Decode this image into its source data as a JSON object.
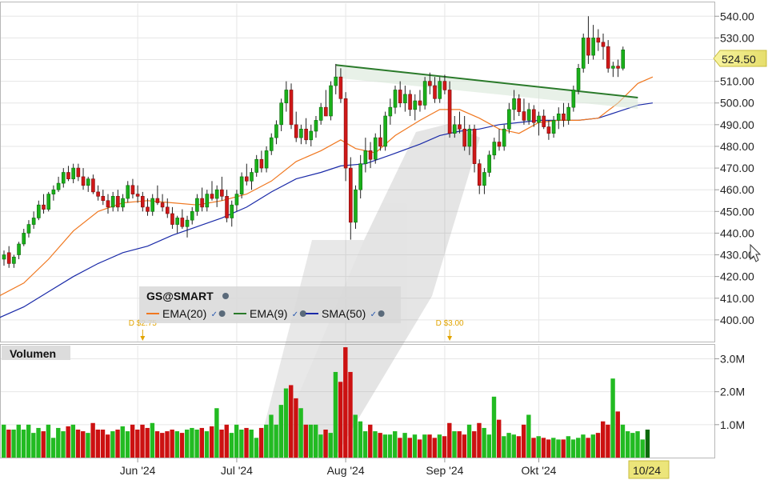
{
  "chart_data": {
    "type": "candlestick",
    "symbol_label": "GS@SMART",
    "price_axis": {
      "ticks": [
        "540.00",
        "530.00",
        "520.00",
        "510.00",
        "500.00",
        "490.00",
        "480.00",
        "470.00",
        "460.00",
        "450.00",
        "440.00",
        "430.00",
        "420.00",
        "410.00",
        "400.00"
      ],
      "tick_values": [
        540,
        530,
        520,
        510,
        500,
        490,
        480,
        470,
        460,
        450,
        440,
        430,
        420,
        410,
        400
      ],
      "range": [
        390,
        546
      ]
    },
    "volume_axis": {
      "title": "Volumen",
      "ticks": [
        "3.0M",
        "2.0M",
        "1.0M"
      ],
      "tick_values": [
        3.0,
        2.0,
        1.0
      ],
      "range": [
        0,
        3.4
      ]
    },
    "x_labels": [
      "Jun '24",
      "Jul '24",
      "Aug '24",
      "Sep '24",
      "Okt '24"
    ],
    "x_label_positions": [
      27,
      47,
      69,
      89,
      108
    ],
    "current_date_label": "10/24",
    "last_price_label": "524.50",
    "last_price": 524.5,
    "legend": [
      {
        "name": "EMA(20)",
        "color": "#f07820"
      },
      {
        "name": "EMA(9)",
        "color": "#2a7a2a"
      },
      {
        "name": "SMA(50)",
        "color": "#1a2aa8"
      }
    ],
    "dividends": [
      {
        "label": "D $2.75",
        "index": 28
      },
      {
        "label": "D $3.00",
        "index": 90
      }
    ],
    "trendline": {
      "from_index": 67,
      "from_value": 517.5,
      "to_index": 128,
      "to_value": 502.5,
      "color": "#2a7a2a"
    },
    "candles": [
      {
        "o": 428,
        "h": 432,
        "l": 425,
        "c": 430
      },
      {
        "o": 431,
        "h": 434,
        "l": 424,
        "c": 426
      },
      {
        "o": 426,
        "h": 430,
        "l": 424,
        "c": 429
      },
      {
        "o": 430,
        "h": 436,
        "l": 428,
        "c": 435
      },
      {
        "o": 435,
        "h": 442,
        "l": 434,
        "c": 440
      },
      {
        "o": 440,
        "h": 446,
        "l": 438,
        "c": 444
      },
      {
        "o": 444,
        "h": 450,
        "l": 442,
        "c": 447
      },
      {
        "o": 447,
        "h": 455,
        "l": 446,
        "c": 453
      },
      {
        "o": 453,
        "h": 458,
        "l": 449,
        "c": 451
      },
      {
        "o": 451,
        "h": 459,
        "l": 450,
        "c": 458
      },
      {
        "o": 458,
        "h": 462,
        "l": 455,
        "c": 460
      },
      {
        "o": 460,
        "h": 466,
        "l": 459,
        "c": 463
      },
      {
        "o": 463,
        "h": 470,
        "l": 461,
        "c": 468
      },
      {
        "o": 468,
        "h": 471,
        "l": 464,
        "c": 465
      },
      {
        "o": 465,
        "h": 472,
        "l": 463,
        "c": 470
      },
      {
        "o": 470,
        "h": 472,
        "l": 464,
        "c": 466
      },
      {
        "o": 466,
        "h": 470,
        "l": 460,
        "c": 462
      },
      {
        "o": 462,
        "h": 466,
        "l": 459,
        "c": 465
      },
      {
        "o": 465,
        "h": 467,
        "l": 458,
        "c": 459
      },
      {
        "o": 459,
        "h": 462,
        "l": 455,
        "c": 457
      },
      {
        "o": 457,
        "h": 460,
        "l": 453,
        "c": 455
      },
      {
        "o": 455,
        "h": 458,
        "l": 449,
        "c": 452
      },
      {
        "o": 452,
        "h": 459,
        "l": 450,
        "c": 457
      },
      {
        "o": 457,
        "h": 460,
        "l": 450,
        "c": 452
      },
      {
        "o": 452,
        "h": 458,
        "l": 450,
        "c": 456
      },
      {
        "o": 456,
        "h": 464,
        "l": 454,
        "c": 462
      },
      {
        "o": 462,
        "h": 465,
        "l": 456,
        "c": 458
      },
      {
        "o": 458,
        "h": 462,
        "l": 454,
        "c": 457
      },
      {
        "o": 457,
        "h": 459,
        "l": 450,
        "c": 452
      },
      {
        "o": 452,
        "h": 456,
        "l": 448,
        "c": 450
      },
      {
        "o": 450,
        "h": 458,
        "l": 448,
        "c": 456
      },
      {
        "o": 456,
        "h": 462,
        "l": 453,
        "c": 454
      },
      {
        "o": 454,
        "h": 458,
        "l": 450,
        "c": 452
      },
      {
        "o": 452,
        "h": 456,
        "l": 447,
        "c": 449
      },
      {
        "o": 449,
        "h": 452,
        "l": 442,
        "c": 444
      },
      {
        "o": 444,
        "h": 448,
        "l": 440,
        "c": 447
      },
      {
        "o": 447,
        "h": 451,
        "l": 442,
        "c": 443
      },
      {
        "o": 443,
        "h": 448,
        "l": 438,
        "c": 446
      },
      {
        "o": 446,
        "h": 452,
        "l": 444,
        "c": 450
      },
      {
        "o": 450,
        "h": 458,
        "l": 448,
        "c": 456
      },
      {
        "o": 456,
        "h": 461,
        "l": 450,
        "c": 452
      },
      {
        "o": 452,
        "h": 460,
        "l": 450,
        "c": 458
      },
      {
        "o": 458,
        "h": 464,
        "l": 455,
        "c": 456
      },
      {
        "o": 456,
        "h": 462,
        "l": 452,
        "c": 460
      },
      {
        "o": 460,
        "h": 466,
        "l": 455,
        "c": 457
      },
      {
        "o": 457,
        "h": 460,
        "l": 445,
        "c": 447
      },
      {
        "o": 447,
        "h": 455,
        "l": 443,
        "c": 453
      },
      {
        "o": 453,
        "h": 460,
        "l": 450,
        "c": 458
      },
      {
        "o": 458,
        "h": 468,
        "l": 456,
        "c": 466
      },
      {
        "o": 466,
        "h": 472,
        "l": 462,
        "c": 464
      },
      {
        "o": 464,
        "h": 470,
        "l": 460,
        "c": 468
      },
      {
        "o": 468,
        "h": 476,
        "l": 466,
        "c": 474
      },
      {
        "o": 474,
        "h": 478,
        "l": 468,
        "c": 470
      },
      {
        "o": 470,
        "h": 480,
        "l": 468,
        "c": 478
      },
      {
        "o": 478,
        "h": 486,
        "l": 476,
        "c": 484
      },
      {
        "o": 484,
        "h": 492,
        "l": 481,
        "c": 490
      },
      {
        "o": 490,
        "h": 502,
        "l": 487,
        "c": 500
      },
      {
        "o": 500,
        "h": 510,
        "l": 496,
        "c": 506
      },
      {
        "o": 506,
        "h": 509,
        "l": 488,
        "c": 490
      },
      {
        "o": 490,
        "h": 496,
        "l": 482,
        "c": 484
      },
      {
        "o": 484,
        "h": 490,
        "l": 481,
        "c": 488
      },
      {
        "o": 488,
        "h": 493,
        "l": 481,
        "c": 483
      },
      {
        "o": 483,
        "h": 490,
        "l": 480,
        "c": 487
      },
      {
        "o": 487,
        "h": 494,
        "l": 484,
        "c": 492
      },
      {
        "o": 492,
        "h": 500,
        "l": 490,
        "c": 498
      },
      {
        "o": 498,
        "h": 506,
        "l": 494,
        "c": 494
      },
      {
        "o": 494,
        "h": 510,
        "l": 492,
        "c": 508
      },
      {
        "o": 508,
        "h": 518,
        "l": 504,
        "c": 512
      },
      {
        "o": 512,
        "h": 516,
        "l": 500,
        "c": 502
      },
      {
        "o": 502,
        "h": 505,
        "l": 464,
        "c": 470
      },
      {
        "o": 470,
        "h": 475,
        "l": 437,
        "c": 445
      },
      {
        "o": 445,
        "h": 462,
        "l": 442,
        "c": 460
      },
      {
        "o": 460,
        "h": 476,
        "l": 456,
        "c": 472
      },
      {
        "o": 472,
        "h": 484,
        "l": 468,
        "c": 478
      },
      {
        "o": 478,
        "h": 482,
        "l": 470,
        "c": 474
      },
      {
        "o": 474,
        "h": 486,
        "l": 472,
        "c": 484
      },
      {
        "o": 484,
        "h": 490,
        "l": 478,
        "c": 480
      },
      {
        "o": 480,
        "h": 496,
        "l": 478,
        "c": 494
      },
      {
        "o": 494,
        "h": 502,
        "l": 490,
        "c": 498
      },
      {
        "o": 498,
        "h": 508,
        "l": 495,
        "c": 506
      },
      {
        "o": 506,
        "h": 510,
        "l": 498,
        "c": 500
      },
      {
        "o": 500,
        "h": 508,
        "l": 496,
        "c": 504
      },
      {
        "o": 504,
        "h": 506,
        "l": 494,
        "c": 497
      },
      {
        "o": 497,
        "h": 504,
        "l": 492,
        "c": 501
      },
      {
        "o": 501,
        "h": 506,
        "l": 496,
        "c": 499
      },
      {
        "o": 499,
        "h": 512,
        "l": 497,
        "c": 510
      },
      {
        "o": 510,
        "h": 514,
        "l": 504,
        "c": 508
      },
      {
        "o": 508,
        "h": 512,
        "l": 500,
        "c": 502
      },
      {
        "o": 502,
        "h": 512,
        "l": 500,
        "c": 510
      },
      {
        "o": 510,
        "h": 513,
        "l": 504,
        "c": 506
      },
      {
        "o": 506,
        "h": 510,
        "l": 484,
        "c": 486
      },
      {
        "o": 486,
        "h": 494,
        "l": 484,
        "c": 490
      },
      {
        "o": 490,
        "h": 496,
        "l": 486,
        "c": 488
      },
      {
        "o": 488,
        "h": 494,
        "l": 478,
        "c": 480
      },
      {
        "o": 480,
        "h": 490,
        "l": 476,
        "c": 488
      },
      {
        "o": 488,
        "h": 490,
        "l": 468,
        "c": 472
      },
      {
        "o": 472,
        "h": 474,
        "l": 458,
        "c": 462
      },
      {
        "o": 462,
        "h": 470,
        "l": 458,
        "c": 468
      },
      {
        "o": 468,
        "h": 478,
        "l": 466,
        "c": 476
      },
      {
        "o": 476,
        "h": 484,
        "l": 474,
        "c": 482
      },
      {
        "o": 482,
        "h": 488,
        "l": 478,
        "c": 480
      },
      {
        "o": 480,
        "h": 490,
        "l": 478,
        "c": 488
      },
      {
        "o": 488,
        "h": 500,
        "l": 486,
        "c": 497
      },
      {
        "o": 497,
        "h": 506,
        "l": 492,
        "c": 502
      },
      {
        "o": 502,
        "h": 504,
        "l": 494,
        "c": 496
      },
      {
        "o": 496,
        "h": 502,
        "l": 490,
        "c": 492
      },
      {
        "o": 492,
        "h": 500,
        "l": 490,
        "c": 497
      },
      {
        "o": 497,
        "h": 499,
        "l": 489,
        "c": 491
      },
      {
        "o": 491,
        "h": 496,
        "l": 485,
        "c": 494
      },
      {
        "o": 494,
        "h": 497,
        "l": 488,
        "c": 489
      },
      {
        "o": 489,
        "h": 492,
        "l": 483,
        "c": 486
      },
      {
        "o": 486,
        "h": 494,
        "l": 484,
        "c": 492
      },
      {
        "o": 492,
        "h": 498,
        "l": 488,
        "c": 495
      },
      {
        "o": 495,
        "h": 500,
        "l": 489,
        "c": 492
      },
      {
        "o": 492,
        "h": 500,
        "l": 490,
        "c": 498
      },
      {
        "o": 498,
        "h": 508,
        "l": 496,
        "c": 506
      },
      {
        "o": 506,
        "h": 518,
        "l": 504,
        "c": 516
      },
      {
        "o": 516,
        "h": 532,
        "l": 514,
        "c": 530
      },
      {
        "o": 530,
        "h": 540,
        "l": 518,
        "c": 522
      },
      {
        "o": 522,
        "h": 536,
        "l": 520,
        "c": 530
      },
      {
        "o": 530,
        "h": 534,
        "l": 524,
        "c": 528
      },
      {
        "o": 528,
        "h": 532,
        "l": 520,
        "c": 526
      },
      {
        "o": 526,
        "h": 529,
        "l": 514,
        "c": 516
      },
      {
        "o": 516,
        "h": 519,
        "l": 512,
        "c": 517
      },
      {
        "o": 517,
        "h": 520,
        "l": 512,
        "c": 516
      },
      {
        "o": 516,
        "h": 526,
        "l": 515,
        "c": 524.5
      }
    ],
    "volume_m": [
      1.0,
      0.85,
      0.85,
      1.0,
      0.85,
      1.0,
      0.75,
      0.9,
      0.8,
      1.0,
      0.6,
      0.9,
      0.8,
      0.95,
      1.0,
      0.85,
      0.8,
      0.75,
      1.05,
      0.85,
      0.85,
      0.7,
      0.8,
      0.85,
      0.95,
      0.8,
      1.0,
      0.85,
      1.0,
      0.9,
      1.05,
      0.8,
      0.75,
      0.8,
      0.85,
      0.8,
      0.75,
      0.85,
      0.9,
      0.85,
      0.9,
      0.8,
      0.95,
      1.5,
      0.85,
      1.0,
      0.75,
      1.0,
      0.85,
      0.9,
      0.85,
      0.6,
      0.9,
      1.0,
      1.3,
      1.0,
      1.6,
      2.1,
      2.2,
      1.8,
      1.5,
      1.0,
      1.0,
      1.0,
      0.7,
      0.85,
      0.75,
      2.6,
      2.3,
      3.35,
      2.6,
      1.3,
      1.1,
      0.8,
      1.0,
      0.8,
      0.75,
      0.7,
      0.7,
      0.8,
      0.6,
      0.75,
      0.6,
      0.7,
      0.55,
      0.7,
      0.7,
      0.6,
      0.7,
      0.65,
      1.05,
      0.8,
      0.8,
      0.7,
      1.0,
      0.8,
      1.05,
      0.9,
      0.7,
      1.85,
      1.15,
      0.65,
      0.75,
      0.7,
      0.65,
      1.0,
      1.3,
      0.6,
      0.65,
      0.6,
      0.55,
      0.6,
      0.55,
      0.55,
      0.65,
      0.55,
      0.6,
      0.7,
      0.6,
      0.7,
      0.75,
      1.1,
      1.0,
      2.4,
      1.4,
      1.0,
      0.8,
      0.75,
      0.8,
      0.55,
      0.85
    ],
    "ema20_points": [
      [
        -1,
        411
      ],
      [
        4,
        417
      ],
      [
        9,
        428
      ],
      [
        14,
        441
      ],
      [
        19,
        450
      ],
      [
        24,
        454
      ],
      [
        29,
        455
      ],
      [
        34,
        454
      ],
      [
        39,
        453
      ],
      [
        44,
        455
      ],
      [
        49,
        458
      ],
      [
        54,
        464
      ],
      [
        59,
        473
      ],
      [
        64,
        478
      ],
      [
        68,
        483
      ],
      [
        71,
        479
      ],
      [
        75,
        477
      ],
      [
        79,
        485
      ],
      [
        84,
        492
      ],
      [
        88,
        497
      ],
      [
        92,
        497
      ],
      [
        96,
        493
      ],
      [
        100,
        488
      ],
      [
        104,
        486
      ],
      [
        108,
        491
      ],
      [
        112,
        492
      ],
      [
        116,
        492
      ],
      [
        120,
        493
      ],
      [
        124,
        500
      ],
      [
        128,
        509
      ],
      [
        131,
        512
      ]
    ],
    "sma50_points": [
      [
        -1,
        401
      ],
      [
        4,
        406
      ],
      [
        9,
        413
      ],
      [
        14,
        420
      ],
      [
        19,
        426
      ],
      [
        24,
        431
      ],
      [
        29,
        434
      ],
      [
        34,
        439
      ],
      [
        39,
        443
      ],
      [
        44,
        447
      ],
      [
        49,
        452
      ],
      [
        54,
        459
      ],
      [
        59,
        465
      ],
      [
        64,
        468
      ],
      [
        68,
        471
      ],
      [
        73,
        472
      ],
      [
        78,
        476
      ],
      [
        84,
        481
      ],
      [
        88,
        485
      ],
      [
        92,
        487
      ],
      [
        96,
        488
      ],
      [
        100,
        490
      ],
      [
        104,
        491
      ],
      [
        108,
        492
      ],
      [
        112,
        492
      ],
      [
        116,
        492
      ],
      [
        120,
        493
      ],
      [
        124,
        496
      ],
      [
        128,
        499
      ],
      [
        131,
        500
      ]
    ]
  }
}
